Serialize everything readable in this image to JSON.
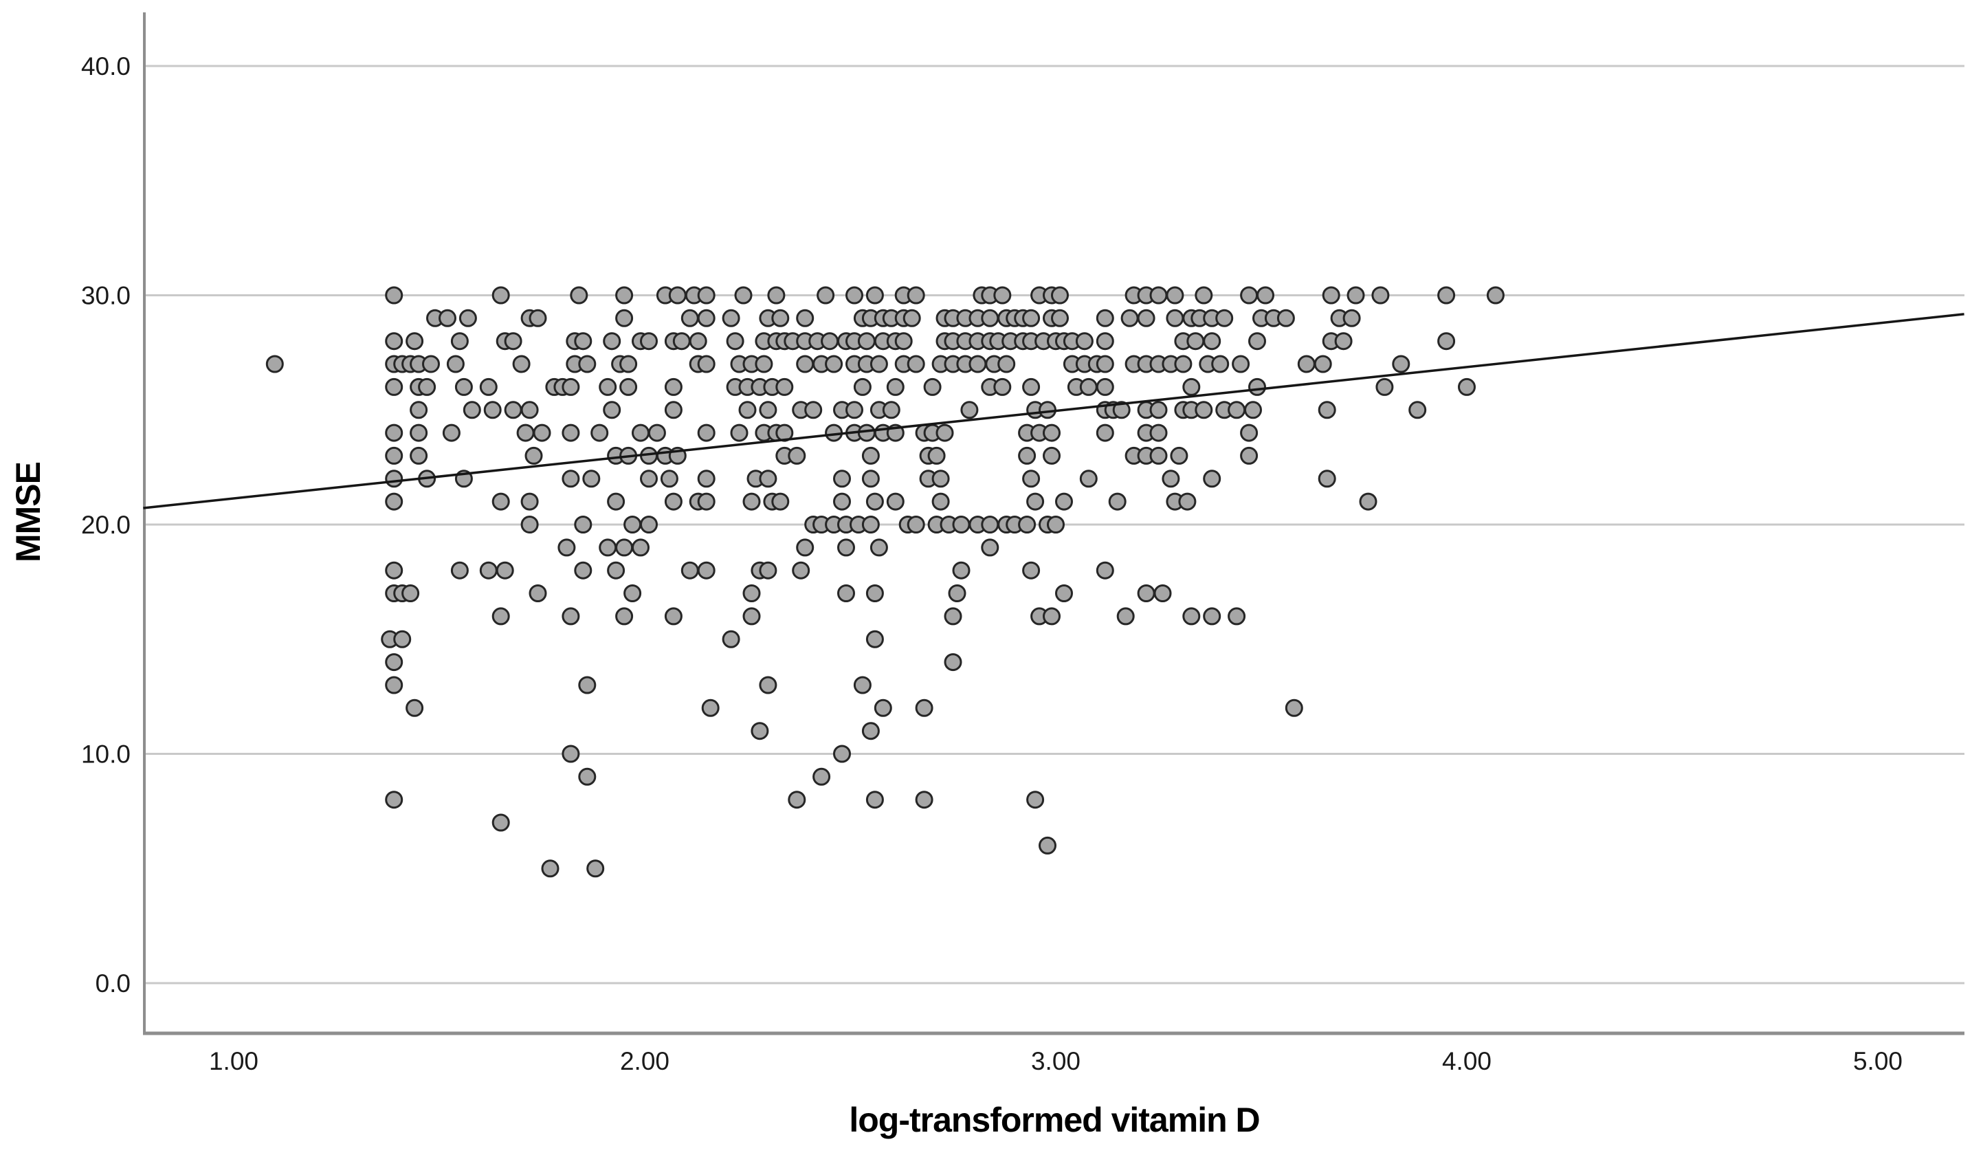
{
  "chart_data": {
    "type": "scatter",
    "title": "",
    "xlabel": "log-transformed vitamin D",
    "ylabel": "MMSE",
    "xlim": [
      0.78,
      5.21
    ],
    "ylim": [
      -2.2,
      42.3
    ],
    "grid": true,
    "x_ticks": [
      {
        "v": 1,
        "label": "1.00"
      },
      {
        "v": 2,
        "label": "2.00"
      },
      {
        "v": 3,
        "label": "3.00"
      },
      {
        "v": 4,
        "label": "4.00"
      },
      {
        "v": 5,
        "label": "5.00"
      }
    ],
    "y_ticks": [
      {
        "v": 0,
        "label": "0.0"
      },
      {
        "v": 10,
        "label": "10.0"
      },
      {
        "v": 20,
        "label": "20.0"
      },
      {
        "v": 30,
        "label": "30.0"
      },
      {
        "v": 40,
        "label": "40.0"
      }
    ],
    "regression_line": {
      "x_start": 0.78,
      "y_start": 20.72,
      "x_end": 5.21,
      "y_end": 29.18,
      "slope": 1.9,
      "intercept": 19.26
    },
    "colors": {
      "marker_fill": "#a6a6a6",
      "marker_stroke": "#262626",
      "gridline": "#c9c9c9",
      "axis": "#8e8e8e",
      "fit_line": "#161616",
      "background": "#ffffff"
    },
    "marker": {
      "radius": 11.5,
      "stroke_width": 3
    },
    "rows": [
      {
        "mmse": 30,
        "x": [
          1.39,
          1.65,
          1.84,
          1.95,
          2.05,
          2.08,
          2.12,
          2.15,
          2.24,
          2.32,
          2.44,
          2.51,
          2.56,
          2.63,
          2.66,
          2.82,
          2.84,
          2.87,
          2.96,
          2.99,
          3.01,
          3.19,
          3.22,
          3.25,
          3.29,
          3.36,
          3.47,
          3.51,
          3.67,
          3.73,
          3.79,
          3.95,
          4.07
        ]
      },
      {
        "mmse": 29,
        "x": [
          1.49,
          1.52,
          1.57,
          1.72,
          1.74,
          1.95,
          2.11,
          2.15,
          2.21,
          2.3,
          2.33,
          2.39,
          2.53,
          2.55,
          2.58,
          2.6,
          2.63,
          2.65,
          2.73,
          2.75,
          2.78,
          2.81,
          2.84,
          2.88,
          2.9,
          2.92,
          2.94,
          2.99,
          3.01,
          3.12,
          3.18,
          3.22,
          3.29,
          3.33,
          3.35,
          3.38,
          3.41,
          3.5,
          3.53,
          3.56,
          3.69,
          3.72
        ]
      },
      {
        "mmse": 28,
        "x": [
          1.39,
          1.44,
          1.55,
          1.66,
          1.68,
          1.83,
          1.85,
          1.92,
          1.99,
          2.01,
          2.07,
          2.09,
          2.13,
          2.22,
          2.29,
          2.32,
          2.34,
          2.36,
          2.39,
          2.42,
          2.45,
          2.49,
          2.51,
          2.54,
          2.58,
          2.61,
          2.63,
          2.73,
          2.75,
          2.78,
          2.81,
          2.84,
          2.86,
          2.89,
          2.92,
          2.94,
          2.97,
          3.0,
          3.02,
          3.04,
          3.07,
          3.12,
          3.31,
          3.34,
          3.38,
          3.49,
          3.67,
          3.7,
          3.95
        ]
      },
      {
        "mmse": 27,
        "x": [
          1.1,
          1.39,
          1.41,
          1.43,
          1.45,
          1.48,
          1.54,
          1.7,
          1.83,
          1.86,
          1.94,
          1.96,
          2.13,
          2.15,
          2.23,
          2.26,
          2.29,
          2.39,
          2.43,
          2.46,
          2.51,
          2.54,
          2.57,
          2.63,
          2.66,
          2.72,
          2.75,
          2.78,
          2.81,
          2.85,
          2.88,
          3.04,
          3.07,
          3.1,
          3.12,
          3.19,
          3.22,
          3.25,
          3.28,
          3.31,
          3.37,
          3.4,
          3.45,
          3.61,
          3.65,
          3.84
        ]
      },
      {
        "mmse": 26,
        "x": [
          1.39,
          1.45,
          1.47,
          1.56,
          1.62,
          1.78,
          1.8,
          1.82,
          1.91,
          1.96,
          2.07,
          2.22,
          2.25,
          2.28,
          2.31,
          2.34,
          2.53,
          2.61,
          2.7,
          2.84,
          2.87,
          2.94,
          3.05,
          3.08,
          3.12,
          3.33,
          3.49,
          3.8,
          4.0
        ]
      },
      {
        "mmse": 25,
        "x": [
          1.45,
          1.58,
          1.63,
          1.68,
          1.72,
          1.92,
          2.07,
          2.25,
          2.3,
          2.38,
          2.41,
          2.48,
          2.51,
          2.57,
          2.6,
          2.79,
          2.95,
          2.98,
          3.12,
          3.14,
          3.16,
          3.22,
          3.25,
          3.31,
          3.33,
          3.36,
          3.41,
          3.44,
          3.48,
          3.66,
          3.88
        ]
      },
      {
        "mmse": 24,
        "x": [
          1.39,
          1.45,
          1.53,
          1.71,
          1.75,
          1.82,
          1.89,
          1.99,
          2.03,
          2.15,
          2.23,
          2.29,
          2.32,
          2.34,
          2.46,
          2.51,
          2.54,
          2.58,
          2.61,
          2.68,
          2.7,
          2.73,
          2.93,
          2.96,
          2.99,
          3.12,
          3.22,
          3.25,
          3.47
        ]
      },
      {
        "mmse": 23,
        "x": [
          1.39,
          1.45,
          1.73,
          1.93,
          1.96,
          2.01,
          2.05,
          2.08,
          2.34,
          2.37,
          2.55,
          2.69,
          2.71,
          2.93,
          2.99,
          3.19,
          3.22,
          3.25,
          3.3,
          3.47
        ]
      },
      {
        "mmse": 22,
        "x": [
          1.39,
          1.47,
          1.56,
          1.82,
          1.87,
          2.01,
          2.06,
          2.15,
          2.27,
          2.3,
          2.48,
          2.55,
          2.69,
          2.72,
          2.94,
          3.08,
          3.28,
          3.38,
          3.66
        ]
      },
      {
        "mmse": 21,
        "x": [
          1.39,
          1.65,
          1.72,
          1.93,
          2.07,
          2.13,
          2.15,
          2.26,
          2.31,
          2.33,
          2.48,
          2.56,
          2.61,
          2.72,
          2.95,
          3.02,
          3.15,
          3.29,
          3.32,
          3.76
        ]
      },
      {
        "mmse": 20,
        "x": [
          1.72,
          1.85,
          1.97,
          2.01,
          2.41,
          2.43,
          2.46,
          2.49,
          2.52,
          2.55,
          2.64,
          2.66,
          2.71,
          2.74,
          2.77,
          2.81,
          2.84,
          2.88,
          2.9,
          2.93,
          2.98,
          3.0
        ]
      },
      {
        "mmse": 19,
        "x": [
          1.81,
          1.91,
          1.95,
          1.99,
          2.39,
          2.49,
          2.57,
          2.84
        ]
      },
      {
        "mmse": 18,
        "x": [
          1.39,
          1.55,
          1.62,
          1.66,
          1.85,
          1.93,
          2.11,
          2.15,
          2.28,
          2.3,
          2.38,
          2.77,
          2.94,
          3.12
        ]
      },
      {
        "mmse": 17,
        "x": [
          1.39,
          1.41,
          1.43,
          1.74,
          1.97,
          2.26,
          2.49,
          2.56,
          2.76,
          3.02,
          3.22,
          3.26
        ]
      },
      {
        "mmse": 16,
        "x": [
          1.65,
          1.82,
          1.95,
          2.07,
          2.26,
          2.75,
          2.96,
          2.99,
          3.17,
          3.33,
          3.38,
          3.44
        ]
      },
      {
        "mmse": 15,
        "x": [
          1.38,
          1.41,
          2.21,
          2.56
        ]
      },
      {
        "mmse": 14,
        "x": [
          1.39,
          2.75
        ]
      },
      {
        "mmse": 13,
        "x": [
          1.39,
          1.86,
          2.3,
          2.53
        ]
      },
      {
        "mmse": 12,
        "x": [
          1.44,
          2.16,
          2.58,
          2.68,
          3.58
        ]
      },
      {
        "mmse": 11,
        "x": [
          2.28,
          2.55
        ]
      },
      {
        "mmse": 10,
        "x": [
          1.82,
          2.48
        ]
      },
      {
        "mmse": 9,
        "x": [
          1.86,
          2.43
        ]
      },
      {
        "mmse": 8,
        "x": [
          1.39,
          2.37,
          2.56,
          2.68,
          2.95
        ]
      },
      {
        "mmse": 7,
        "x": [
          1.65
        ]
      },
      {
        "mmse": 6,
        "x": [
          2.98
        ]
      },
      {
        "mmse": 5,
        "x": [
          1.77,
          1.88
        ]
      }
    ]
  }
}
